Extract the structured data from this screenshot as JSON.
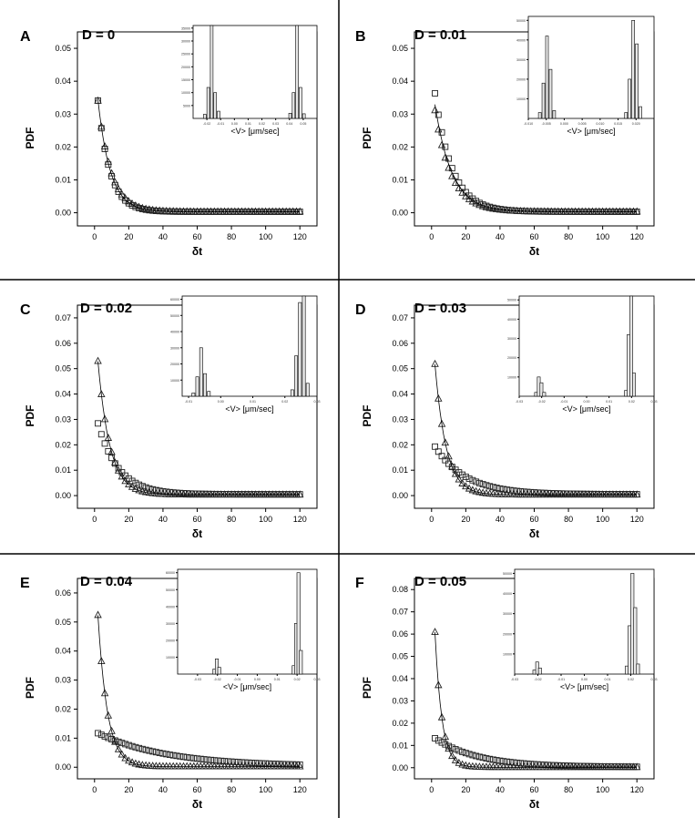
{
  "chart_data": [
    {
      "panel": "A",
      "type": "scatter",
      "title": "D = 0",
      "xlabel": "δt",
      "ylabel": "PDF",
      "xlim": [
        -10,
        130
      ],
      "ylim": [
        -0.004,
        0.055
      ],
      "xticks": [
        0,
        20,
        40,
        60,
        80,
        100,
        120
      ],
      "yticks": [
        0.0,
        0.01,
        0.02,
        0.03,
        0.04,
        0.05
      ],
      "yticklabels": [
        "0.00",
        "0.01",
        "0.02",
        "0.03",
        "0.04",
        "0.05"
      ],
      "series": [
        {
          "name": "squares",
          "marker": "square",
          "a": 0.045,
          "tau": 7.0,
          "c": 0.0003
        },
        {
          "name": "triangles",
          "marker": "triangle",
          "a": 0.044,
          "tau": 7.5,
          "c": 0.0003
        },
        {
          "name": "fit",
          "marker": "line",
          "a": 0.045,
          "tau": 7.2,
          "c": 0.0003
        }
      ],
      "inset": {
        "xlabel": "<V> [μm/sec]",
        "xlim": [
          -0.03,
          0.06
        ],
        "xticks": [
          -0.02,
          -0.01,
          0.0,
          0.01,
          0.02,
          0.03,
          0.04,
          0.05
        ],
        "xticklabels": [
          "-0.02",
          "-0.01",
          "0.00",
          "0.01",
          "0.02",
          "0.03",
          "0.04",
          "0.05"
        ],
        "ylim": [
          0,
          36000
        ],
        "yticks": [
          5000,
          10000,
          15000,
          20000,
          25000,
          30000,
          35000
        ],
        "bars": [
          {
            "x": -0.0215,
            "v": 1600
          },
          {
            "x": -0.019,
            "v": 12000
          },
          {
            "x": -0.0165,
            "v": 36000
          },
          {
            "x": -0.014,
            "v": 10000
          },
          {
            "x": -0.0115,
            "v": 2800
          },
          {
            "x": 0.0405,
            "v": 2000
          },
          {
            "x": 0.043,
            "v": 10000
          },
          {
            "x": 0.0455,
            "v": 36000
          },
          {
            "x": 0.048,
            "v": 12000
          },
          {
            "x": 0.0505,
            "v": 1800
          }
        ]
      }
    },
    {
      "panel": "B",
      "type": "scatter",
      "title": "D = 0.01",
      "xlabel": "δt",
      "ylabel": "PDF",
      "xlim": [
        -10,
        130
      ],
      "ylim": [
        -0.004,
        0.055
      ],
      "xticks": [
        0,
        20,
        40,
        60,
        80,
        100,
        120
      ],
      "yticks": [
        0.0,
        0.01,
        0.02,
        0.03,
        0.04,
        0.05
      ],
      "yticklabels": [
        "0.00",
        "0.01",
        "0.02",
        "0.03",
        "0.04",
        "0.05"
      ],
      "series": [
        {
          "name": "squares",
          "marker": "square",
          "a": 0.044,
          "tau": 10.0,
          "c": 0.0003
        },
        {
          "name": "triangles",
          "marker": "triangle",
          "a": 0.038,
          "tau": 9.5,
          "c": 0.0003
        },
        {
          "name": "fit",
          "marker": "line",
          "a": 0.04,
          "tau": 9.8,
          "c": 0.0003
        }
      ],
      "inset": {
        "xlabel": "<V> [μm/sec]",
        "xlim": [
          -0.01,
          0.025
        ],
        "xticks": [
          -0.01,
          -0.005,
          0.0,
          0.005,
          0.01,
          0.015,
          0.02
        ],
        "xticklabels": [
          "-0.010",
          "-0.005",
          "0.000",
          "0.005",
          "0.010",
          "0.015",
          "0.020"
        ],
        "ylim": [
          0,
          52000
        ],
        "yticks": [
          10000,
          20000,
          30000,
          40000,
          50000
        ],
        "bars": [
          {
            "x": -0.0068,
            "v": 3000
          },
          {
            "x": -0.0058,
            "v": 18000
          },
          {
            "x": -0.0048,
            "v": 42000
          },
          {
            "x": -0.0038,
            "v": 25000
          },
          {
            "x": -0.0028,
            "v": 4000
          },
          {
            "x": 0.0172,
            "v": 3000
          },
          {
            "x": 0.0182,
            "v": 20000
          },
          {
            "x": 0.0192,
            "v": 50000
          },
          {
            "x": 0.0202,
            "v": 38000
          },
          {
            "x": 0.0212,
            "v": 6000
          }
        ]
      }
    },
    {
      "panel": "C",
      "type": "scatter",
      "title": "D = 0.02",
      "xlabel": "δt",
      "ylabel": "PDF",
      "xlim": [
        -10,
        130
      ],
      "ylim": [
        -0.005,
        0.075
      ],
      "xticks": [
        0,
        20,
        40,
        60,
        80,
        100,
        120
      ],
      "yticks": [
        0.0,
        0.01,
        0.02,
        0.03,
        0.04,
        0.05,
        0.06,
        0.07
      ],
      "yticklabels": [
        "0.00",
        "0.01",
        "0.02",
        "0.03",
        "0.04",
        "0.05",
        "0.06",
        "0.07"
      ],
      "series": [
        {
          "name": "squares",
          "marker": "square",
          "a": 0.033,
          "tau": 12.0,
          "c": 0.0005
        },
        {
          "name": "triangles",
          "marker": "triangle",
          "a": 0.07,
          "tau": 7.0,
          "c": 0.0003
        },
        {
          "name": "fit",
          "marker": "line",
          "a": 0.07,
          "tau": 7.0,
          "c": 0.0003
        }
      ],
      "inset": {
        "xlabel": "<V> [μm/sec]",
        "xlim": [
          -0.012,
          0.03
        ],
        "xticks": [
          -0.01,
          0.0,
          0.01,
          0.02,
          0.03
        ],
        "xticklabels": [
          "-0.01",
          "0.00",
          "0.01",
          "0.02",
          "0.03"
        ],
        "ylim": [
          0,
          62000
        ],
        "yticks": [
          10000,
          20000,
          30000,
          40000,
          50000,
          60000
        ],
        "bars": [
          {
            "x": -0.0085,
            "v": 2000
          },
          {
            "x": -0.0073,
            "v": 12000
          },
          {
            "x": -0.0061,
            "v": 30000
          },
          {
            "x": -0.0049,
            "v": 14000
          },
          {
            "x": -0.0037,
            "v": 3000
          },
          {
            "x": 0.0223,
            "v": 4000
          },
          {
            "x": 0.0235,
            "v": 25000
          },
          {
            "x": 0.0247,
            "v": 58000
          },
          {
            "x": 0.0259,
            "v": 62000
          },
          {
            "x": 0.0271,
            "v": 8000
          }
        ]
      }
    },
    {
      "panel": "D",
      "type": "scatter",
      "title": "D = 0.03",
      "xlabel": "δt",
      "ylabel": "PDF",
      "xlim": [
        -10,
        130
      ],
      "ylim": [
        -0.005,
        0.075
      ],
      "xticks": [
        0,
        20,
        40,
        60,
        80,
        100,
        120
      ],
      "yticks": [
        0.0,
        0.01,
        0.02,
        0.03,
        0.04,
        0.05,
        0.06,
        0.07
      ],
      "yticklabels": [
        "0.00",
        "0.01",
        "0.02",
        "0.03",
        "0.04",
        "0.05",
        "0.06",
        "0.07"
      ],
      "series": [
        {
          "name": "squares",
          "marker": "square",
          "a": 0.021,
          "tau": 18.0,
          "c": 0.0005
        },
        {
          "name": "triangles",
          "marker": "triangle",
          "a": 0.07,
          "tau": 6.5,
          "c": 0.0003
        },
        {
          "name": "fit",
          "marker": "line",
          "a": 0.07,
          "tau": 6.5,
          "c": 0.0003
        }
      ],
      "inset": {
        "xlabel": "<V> [μm/sec]",
        "xlim": [
          -0.03,
          0.03
        ],
        "xticks": [
          -0.03,
          -0.02,
          -0.01,
          0.0,
          0.01,
          0.02,
          0.03
        ],
        "xticklabels": [
          "-0.03",
          "-0.02",
          "-0.01",
          "0.00",
          "0.01",
          "0.02",
          "0.03"
        ],
        "ylim": [
          0,
          52000
        ],
        "yticks": [
          10000,
          20000,
          30000,
          40000,
          50000
        ],
        "bars": [
          {
            "x": -0.0225,
            "v": 2000
          },
          {
            "x": -0.0213,
            "v": 10000
          },
          {
            "x": -0.0201,
            "v": 7000
          },
          {
            "x": -0.0189,
            "v": 2000
          },
          {
            "x": 0.0175,
            "v": 3000
          },
          {
            "x": 0.0187,
            "v": 32000
          },
          {
            "x": 0.0199,
            "v": 52000
          },
          {
            "x": 0.0211,
            "v": 12000
          }
        ]
      }
    },
    {
      "panel": "E",
      "type": "scatter",
      "title": "D = 0.04",
      "xlabel": "δt",
      "ylabel": "PDF",
      "xlim": [
        -10,
        130
      ],
      "ylim": [
        -0.004,
        0.065
      ],
      "xticks": [
        0,
        20,
        40,
        60,
        80,
        100,
        120
      ],
      "yticks": [
        0.0,
        0.01,
        0.02,
        0.03,
        0.04,
        0.05,
        0.06
      ],
      "yticklabels": [
        "0.00",
        "0.01",
        "0.02",
        "0.03",
        "0.04",
        "0.05",
        "0.06"
      ],
      "series": [
        {
          "name": "squares",
          "marker": "square",
          "a": 0.012,
          "tau": 40.0,
          "c": 0.0003
        },
        {
          "name": "triangles",
          "marker": "triangle",
          "a": 0.075,
          "tau": 5.5,
          "c": 0.0002
        },
        {
          "name": "fit",
          "marker": "line",
          "a": 0.075,
          "tau": 5.5,
          "c": 0.0002
        }
      ],
      "inset": {
        "xlabel": "<V> [μm/sec]",
        "xlim": [
          -0.04,
          0.03
        ],
        "xticks": [
          -0.03,
          -0.02,
          -0.01,
          0.0,
          0.01,
          0.02,
          0.03
        ],
        "xticklabels": [
          "-0.03",
          "-0.02",
          "-0.01",
          "0.00",
          "0.01",
          "0.02",
          "0.03"
        ],
        "ylim": [
          0,
          62000
        ],
        "yticks": [
          10000,
          20000,
          30000,
          40000,
          50000,
          60000
        ],
        "bars": [
          {
            "x": -0.0215,
            "v": 3000
          },
          {
            "x": -0.0203,
            "v": 9000
          },
          {
            "x": -0.0191,
            "v": 4000
          },
          {
            "x": 0.0183,
            "v": 5000
          },
          {
            "x": 0.0195,
            "v": 30000
          },
          {
            "x": 0.0207,
            "v": 60000
          },
          {
            "x": 0.0219,
            "v": 14000
          }
        ]
      }
    },
    {
      "panel": "F",
      "type": "scatter",
      "title": "D = 0.05",
      "xlabel": "δt",
      "ylabel": "PDF",
      "xlim": [
        -10,
        130
      ],
      "ylim": [
        -0.005,
        0.085
      ],
      "xticks": [
        0,
        20,
        40,
        60,
        80,
        100,
        120
      ],
      "yticks": [
        0.0,
        0.01,
        0.02,
        0.03,
        0.04,
        0.05,
        0.06,
        0.07,
        0.08
      ],
      "yticklabels": [
        "0.00",
        "0.01",
        "0.02",
        "0.03",
        "0.04",
        "0.05",
        "0.06",
        "0.07",
        "0.08"
      ],
      "series": [
        {
          "name": "squares",
          "marker": "square",
          "a": 0.014,
          "tau": 25.0,
          "c": 0.0003
        },
        {
          "name": "triangles",
          "marker": "triangle",
          "a": 0.1,
          "tau": 4.0,
          "c": 0.0002
        },
        {
          "name": "fit",
          "marker": "line",
          "a": 0.1,
          "tau": 4.0,
          "c": 0.0002
        }
      ],
      "inset": {
        "xlabel": "<V> [μm/sec]",
        "xlim": [
          -0.03,
          0.03
        ],
        "xticks": [
          -0.03,
          -0.02,
          -0.01,
          0.0,
          0.01,
          0.02,
          0.03
        ],
        "xticklabels": [
          "-0.03",
          "-0.02",
          "-0.01",
          "0.00",
          "0.01",
          "0.02",
          "0.03"
        ],
        "ylim": [
          0,
          52000
        ],
        "yticks": [
          10000,
          20000,
          30000,
          40000,
          50000
        ],
        "bars": [
          {
            "x": -0.0215,
            "v": 2000
          },
          {
            "x": -0.0203,
            "v": 6000
          },
          {
            "x": -0.0191,
            "v": 3000
          },
          {
            "x": 0.0183,
            "v": 4000
          },
          {
            "x": 0.0195,
            "v": 24000
          },
          {
            "x": 0.0207,
            "v": 50000
          },
          {
            "x": 0.0219,
            "v": 33000
          },
          {
            "x": 0.0231,
            "v": 5000
          }
        ]
      }
    }
  ]
}
